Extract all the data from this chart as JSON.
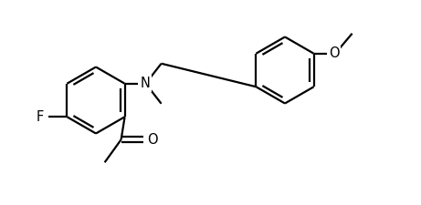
{
  "bg_color": "#ffffff",
  "line_color": "#000000",
  "line_width": 1.6,
  "font_size": 10.5,
  "figsize": [
    4.61,
    2.25
  ],
  "dpi": 100,
  "xlim": [
    0.0,
    4.61
  ],
  "ylim": [
    0.0,
    2.25
  ]
}
